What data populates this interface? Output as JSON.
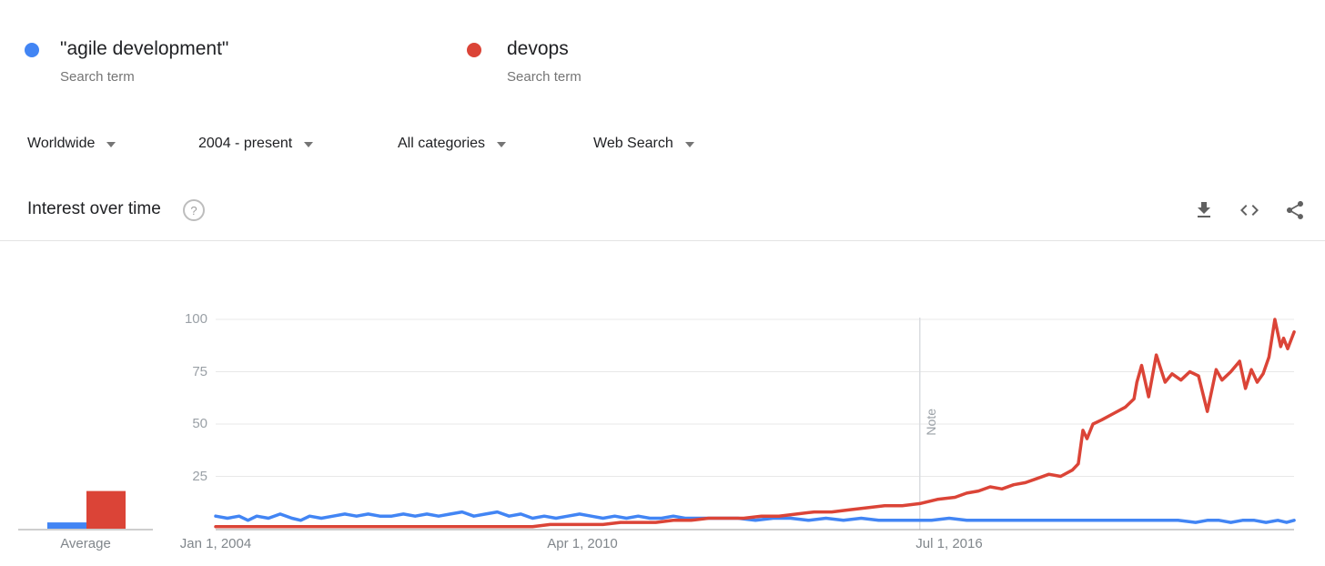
{
  "terms": [
    {
      "label": "\"agile development\"",
      "sublabel": "Search term",
      "color": "#4285f4",
      "key": "agile_development"
    },
    {
      "label": "devops",
      "sublabel": "Search term",
      "color": "#db4437",
      "key": "devops"
    }
  ],
  "filters": [
    {
      "label": "Worldwide"
    },
    {
      "label": "2004 - present"
    },
    {
      "label": "All categories"
    },
    {
      "label": "Web Search"
    }
  ],
  "section": {
    "title": "Interest over time",
    "help_glyph": "?"
  },
  "actions": [
    {
      "name": "download"
    },
    {
      "name": "embed"
    },
    {
      "name": "share"
    }
  ],
  "chart_data": {
    "type": "line",
    "title": "Interest over time",
    "xlabel": "",
    "ylabel": "",
    "ylim": [
      0,
      100
    ],
    "grid": true,
    "legend_position": "top",
    "y_ticks": [
      100,
      75,
      50,
      25
    ],
    "x_tick_labels": [
      "Jan 1, 2004",
      "Apr 1, 2010",
      "Jul 1, 2016"
    ],
    "x_tick_years": [
      2004.0,
      2010.25,
      2016.5
    ],
    "xlim_years": [
      2004.0,
      2022.38
    ],
    "note_marker_year": 2016.0,
    "note_label": "Note",
    "average_label": "Average",
    "series": [
      {
        "name": "\"agile development\"",
        "key": "agile_development",
        "color": "#4285f4",
        "average": 3,
        "points": [
          [
            2004,
            6
          ],
          [
            2004.2,
            5
          ],
          [
            2004.4,
            6
          ],
          [
            2004.55,
            4
          ],
          [
            2004.7,
            6
          ],
          [
            2004.9,
            5
          ],
          [
            2005.1,
            7
          ],
          [
            2005.3,
            5
          ],
          [
            2005.45,
            4
          ],
          [
            2005.6,
            6
          ],
          [
            2005.8,
            5
          ],
          [
            2006,
            6
          ],
          [
            2006.2,
            7
          ],
          [
            2006.4,
            6
          ],
          [
            2006.6,
            7
          ],
          [
            2006.8,
            6
          ],
          [
            2007,
            6
          ],
          [
            2007.2,
            7
          ],
          [
            2007.4,
            6
          ],
          [
            2007.6,
            7
          ],
          [
            2007.8,
            6
          ],
          [
            2008,
            7
          ],
          [
            2008.2,
            8
          ],
          [
            2008.4,
            6
          ],
          [
            2008.6,
            7
          ],
          [
            2008.8,
            8
          ],
          [
            2009,
            6
          ],
          [
            2009.2,
            7
          ],
          [
            2009.4,
            5
          ],
          [
            2009.6,
            6
          ],
          [
            2009.8,
            5
          ],
          [
            2010,
            6
          ],
          [
            2010.2,
            7
          ],
          [
            2010.4,
            6
          ],
          [
            2010.6,
            5
          ],
          [
            2010.8,
            6
          ],
          [
            2011,
            5
          ],
          [
            2011.2,
            6
          ],
          [
            2011.4,
            5
          ],
          [
            2011.6,
            5
          ],
          [
            2011.8,
            6
          ],
          [
            2012,
            5
          ],
          [
            2012.3,
            5
          ],
          [
            2012.6,
            5
          ],
          [
            2012.9,
            5
          ],
          [
            2013.2,
            4
          ],
          [
            2013.5,
            5
          ],
          [
            2013.8,
            5
          ],
          [
            2014.1,
            4
          ],
          [
            2014.4,
            5
          ],
          [
            2014.7,
            4
          ],
          [
            2015,
            5
          ],
          [
            2015.3,
            4
          ],
          [
            2015.6,
            4
          ],
          [
            2015.9,
            4
          ],
          [
            2016.2,
            4
          ],
          [
            2016.5,
            5
          ],
          [
            2016.8,
            4
          ],
          [
            2017.1,
            4
          ],
          [
            2017.4,
            4
          ],
          [
            2017.7,
            4
          ],
          [
            2018,
            4
          ],
          [
            2018.3,
            4
          ],
          [
            2018.6,
            4
          ],
          [
            2018.9,
            4
          ],
          [
            2019.2,
            4
          ],
          [
            2019.5,
            4
          ],
          [
            2019.8,
            4
          ],
          [
            2020.1,
            4
          ],
          [
            2020.4,
            4
          ],
          [
            2020.7,
            3
          ],
          [
            2020.9,
            4
          ],
          [
            2021.1,
            4
          ],
          [
            2021.3,
            3
          ],
          [
            2021.5,
            4
          ],
          [
            2021.7,
            4
          ],
          [
            2021.9,
            3
          ],
          [
            2022.1,
            4
          ],
          [
            2022.25,
            3
          ],
          [
            2022.38,
            4
          ]
        ]
      },
      {
        "name": "devops",
        "key": "devops",
        "color": "#db4437",
        "average": 18,
        "points": [
          [
            2004,
            1
          ],
          [
            2004.3,
            1
          ],
          [
            2004.6,
            1
          ],
          [
            2004.9,
            1
          ],
          [
            2005.2,
            1
          ],
          [
            2005.5,
            1
          ],
          [
            2005.8,
            1
          ],
          [
            2006.1,
            1
          ],
          [
            2006.4,
            1
          ],
          [
            2006.7,
            1
          ],
          [
            2007,
            1
          ],
          [
            2007.3,
            1
          ],
          [
            2007.6,
            1
          ],
          [
            2007.9,
            1
          ],
          [
            2008.2,
            1
          ],
          [
            2008.5,
            1
          ],
          [
            2008.8,
            1
          ],
          [
            2009.1,
            1
          ],
          [
            2009.4,
            1
          ],
          [
            2009.7,
            2
          ],
          [
            2010,
            2
          ],
          [
            2010.3,
            2
          ],
          [
            2010.6,
            2
          ],
          [
            2010.9,
            3
          ],
          [
            2011.2,
            3
          ],
          [
            2011.5,
            3
          ],
          [
            2011.8,
            4
          ],
          [
            2012.1,
            4
          ],
          [
            2012.4,
            5
          ],
          [
            2012.7,
            5
          ],
          [
            2013,
            5
          ],
          [
            2013.3,
            6
          ],
          [
            2013.6,
            6
          ],
          [
            2013.9,
            7
          ],
          [
            2014.2,
            8
          ],
          [
            2014.5,
            8
          ],
          [
            2014.8,
            9
          ],
          [
            2015.1,
            10
          ],
          [
            2015.4,
            11
          ],
          [
            2015.7,
            11
          ],
          [
            2016,
            12
          ],
          [
            2016.3,
            14
          ],
          [
            2016.6,
            15
          ],
          [
            2016.8,
            17
          ],
          [
            2017,
            18
          ],
          [
            2017.2,
            20
          ],
          [
            2017.4,
            19
          ],
          [
            2017.6,
            21
          ],
          [
            2017.8,
            22
          ],
          [
            2018,
            24
          ],
          [
            2018.2,
            26
          ],
          [
            2018.4,
            25
          ],
          [
            2018.6,
            28
          ],
          [
            2018.7,
            31
          ],
          [
            2018.78,
            47
          ],
          [
            2018.85,
            43
          ],
          [
            2018.95,
            50
          ],
          [
            2019.1,
            52
          ],
          [
            2019.3,
            55
          ],
          [
            2019.5,
            58
          ],
          [
            2019.65,
            62
          ],
          [
            2019.7,
            70
          ],
          [
            2019.78,
            78
          ],
          [
            2019.9,
            63
          ],
          [
            2020.03,
            83
          ],
          [
            2020.18,
            70
          ],
          [
            2020.3,
            74
          ],
          [
            2020.45,
            71
          ],
          [
            2020.6,
            75
          ],
          [
            2020.75,
            73
          ],
          [
            2020.9,
            56
          ],
          [
            2021.05,
            76
          ],
          [
            2021.15,
            71
          ],
          [
            2021.3,
            75
          ],
          [
            2021.45,
            80
          ],
          [
            2021.55,
            67
          ],
          [
            2021.65,
            76
          ],
          [
            2021.75,
            70
          ],
          [
            2021.85,
            74
          ],
          [
            2021.95,
            82
          ],
          [
            2022.05,
            100
          ],
          [
            2022.15,
            87
          ],
          [
            2022.2,
            91
          ],
          [
            2022.27,
            86
          ],
          [
            2022.38,
            94
          ]
        ]
      }
    ]
  }
}
